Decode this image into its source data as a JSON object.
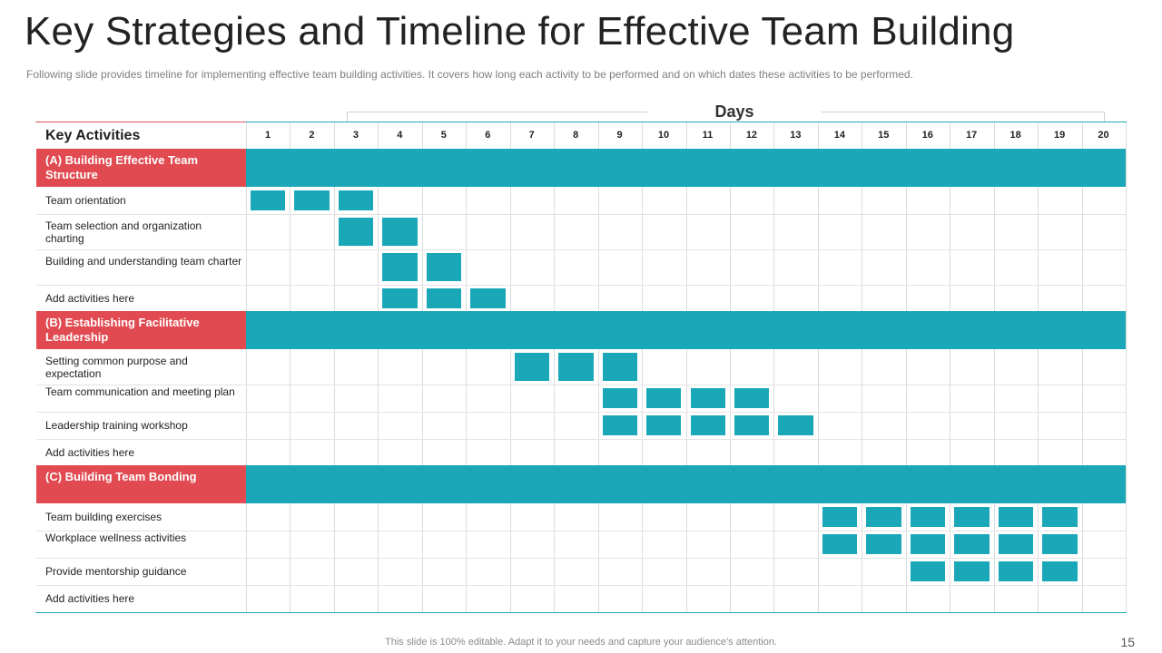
{
  "title": "Key Strategies and Timeline for Effective Team Building",
  "subtitle": "Following slide provides  timeline for implementing  effective  team building activities.  It covers  how long each activity to be performed  and on which dates these activities to be performed.",
  "days_label": "Days",
  "key_activities_label": "Key Activities",
  "days": [
    "1",
    "2",
    "3",
    "4",
    "5",
    "6",
    "7",
    "8",
    "9",
    "10",
    "11",
    "12",
    "13",
    "14",
    "15",
    "16",
    "17",
    "18",
    "19",
    "20"
  ],
  "groups": [
    {
      "label": "(A) Building Effective Team Structure",
      "activities": [
        {
          "label": "Team orientation",
          "days": [
            1,
            2,
            3
          ]
        },
        {
          "label": "Team selection and organization charting",
          "days": [
            3,
            4
          ]
        },
        {
          "label": "Building and understanding team charter",
          "days": [
            4,
            5
          ]
        },
        {
          "label": "Add activities here",
          "days": [
            4,
            5,
            6
          ]
        }
      ]
    },
    {
      "label": "(B) Establishing Facilitative Leadership",
      "activities": [
        {
          "label": "Setting common purpose and expectation",
          "days": [
            7,
            8,
            9
          ]
        },
        {
          "label": "Team communication and meeting plan",
          "days": [
            9,
            10,
            11,
            12
          ]
        },
        {
          "label": "Leadership training workshop",
          "days": [
            9,
            10,
            11,
            12,
            13
          ]
        },
        {
          "label": "Add activities here",
          "days": []
        }
      ]
    },
    {
      "label": "(C) Building Team Bonding",
      "activities": [
        {
          "label": "Team building exercises",
          "days": [
            14,
            15,
            16,
            17,
            18,
            19
          ]
        },
        {
          "label": "Workplace wellness activities",
          "days": [
            14,
            15,
            16,
            17,
            18,
            19
          ]
        },
        {
          "label": "Provide mentorship guidance",
          "days": [
            16,
            17,
            18,
            19
          ]
        },
        {
          "label": "Add activities here",
          "days": []
        }
      ]
    }
  ],
  "footer": "This slide is 100% editable. Adapt it to your needs and capture your audience's attention.",
  "page_number": "15",
  "colors": {
    "accent_red": "#e04a50",
    "accent_teal": "#1aa8b8"
  }
}
